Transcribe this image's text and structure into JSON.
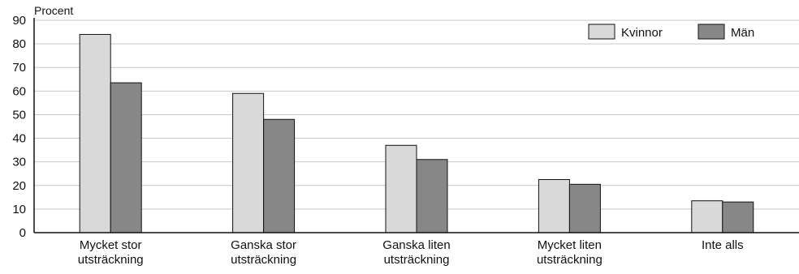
{
  "chart_data": {
    "type": "bar",
    "ylabel": "Procent",
    "xlabel": "",
    "ylim": [
      0,
      90
    ],
    "yticks": [
      0,
      10,
      20,
      30,
      40,
      50,
      60,
      70,
      80,
      90
    ],
    "grid": true,
    "legend_position": "top-right",
    "categories": [
      [
        "Mycket stor",
        "utsträckning"
      ],
      [
        "Ganska stor",
        "utsträckning"
      ],
      [
        "Ganska liten",
        "utsträckning"
      ],
      [
        "Mycket liten",
        "utsträckning"
      ],
      [
        "Inte alls"
      ]
    ],
    "series": [
      {
        "name": "Kvinnor",
        "color": "#d9d9d9",
        "values": [
          84,
          59,
          37,
          22.5,
          13.5
        ]
      },
      {
        "name": "Män",
        "color": "#878787",
        "values": [
          63.5,
          48,
          31,
          20.5,
          13
        ]
      }
    ]
  }
}
